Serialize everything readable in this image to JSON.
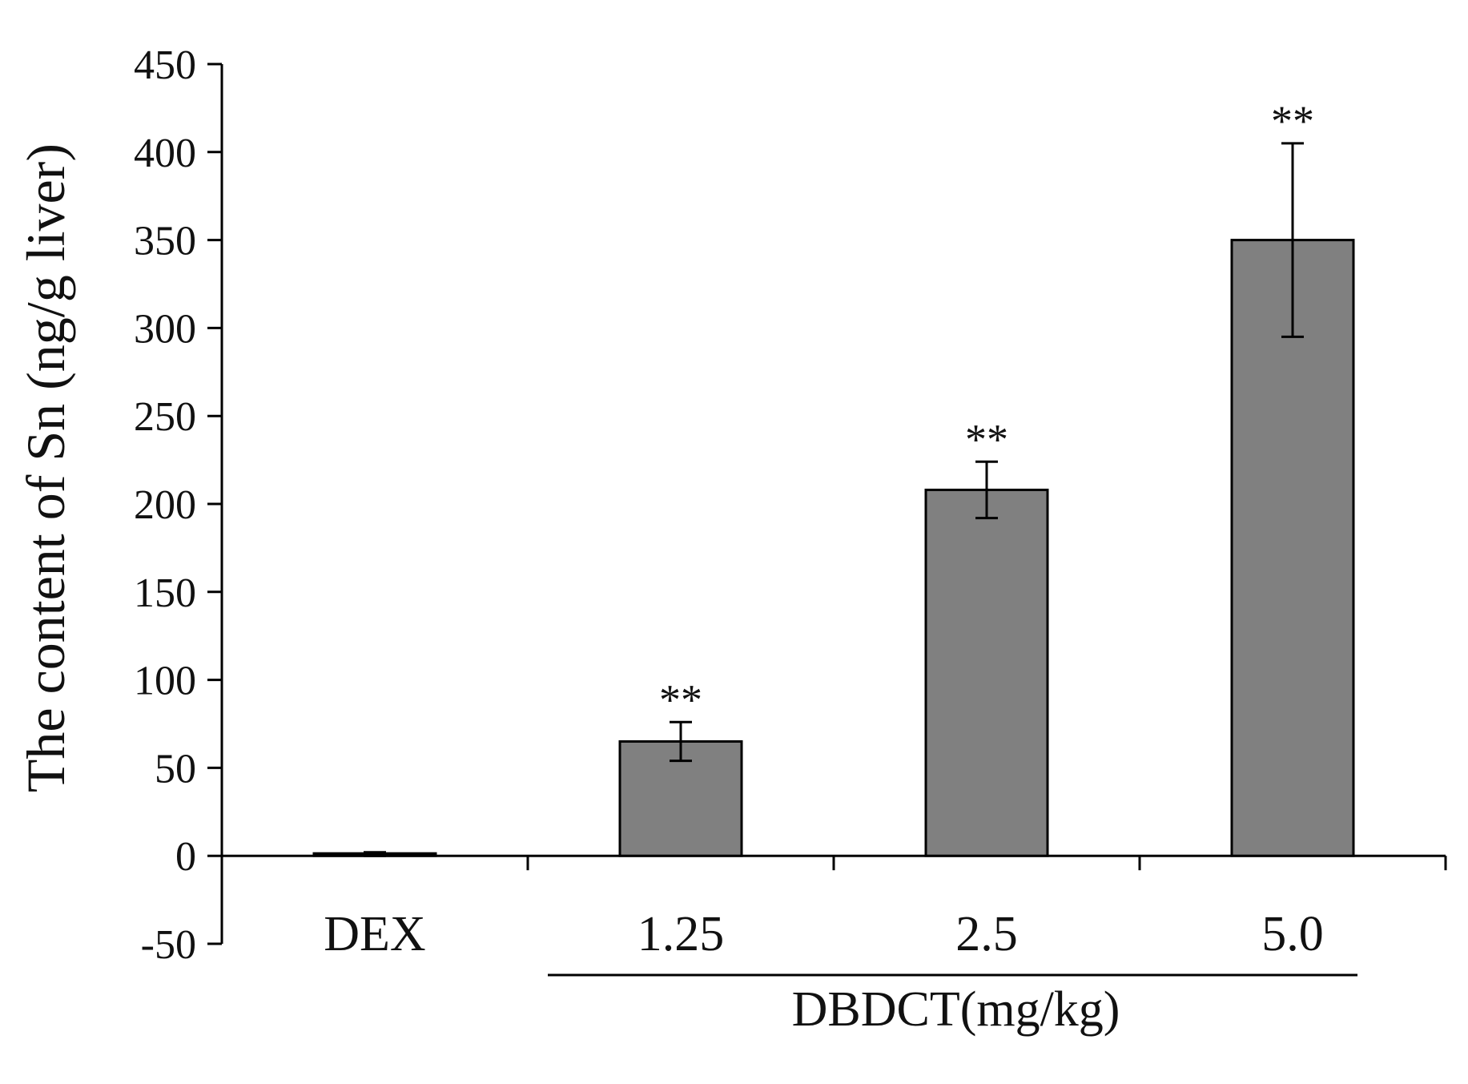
{
  "chart_data": {
    "type": "bar",
    "title": "",
    "ylabel": "The content of Sn (ng/g liver)",
    "xlabel": "",
    "group_label": "DBDCT(mg/kg)",
    "categories": [
      "DEX",
      "1.25",
      "2.5",
      "5.0"
    ],
    "values": [
      1,
      65,
      208,
      350
    ],
    "errors": [
      1,
      11,
      16,
      55
    ],
    "significance": [
      "",
      "**",
      "**",
      "**"
    ],
    "ylim": [
      -50,
      450
    ],
    "yticks": [
      -50,
      0,
      50,
      100,
      150,
      200,
      250,
      300,
      350,
      400,
      450
    ],
    "grid": false,
    "bar_color": "#808080",
    "axis_color": "#000000"
  }
}
